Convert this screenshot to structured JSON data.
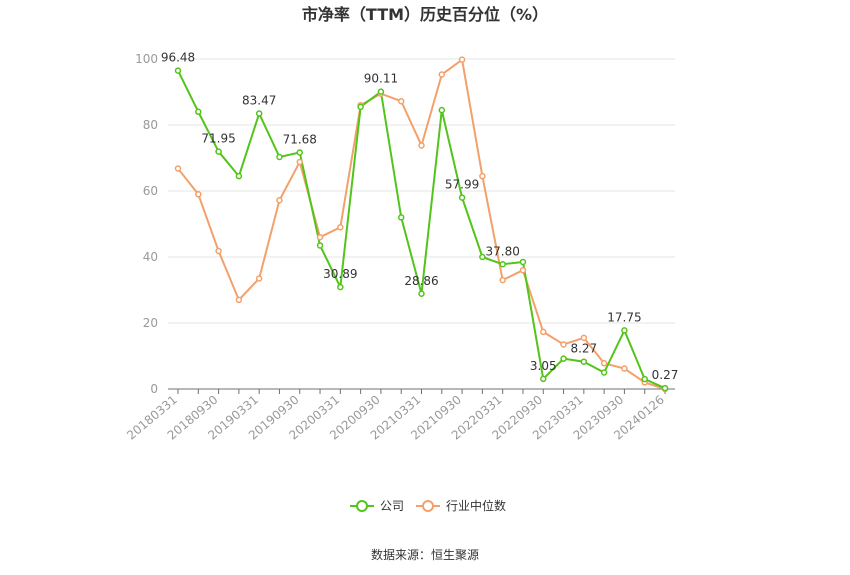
{
  "chart_data": {
    "type": "line",
    "title": "市净率（TTM）历史百分位（%）",
    "source": "数据来源：恒生聚源",
    "ylim": [
      0,
      100
    ],
    "yticks": [
      0,
      20,
      40,
      60,
      80,
      100
    ],
    "grid": true,
    "legend_position": "bottom",
    "x": [
      "20180331",
      "20180630",
      "20180930",
      "20181231",
      "20190331",
      "20190630",
      "20190930",
      "20191231",
      "20200331",
      "20200630",
      "20200930",
      "20201231",
      "20210331",
      "20210630",
      "20210930",
      "20211231",
      "20220331",
      "20220630",
      "20220930",
      "20221231",
      "20230331",
      "20230630",
      "20230930",
      "20231231",
      "20240126"
    ],
    "x_tick_labels": [
      "20180331",
      "20180930",
      "20190331",
      "20190930",
      "20200331",
      "20200930",
      "20210331",
      "20210930",
      "20220331",
      "20220930",
      "20230331",
      "20230930",
      "20240126"
    ],
    "series": [
      {
        "name": "公司",
        "color": "#52c41a",
        "values": [
          96.48,
          84.0,
          71.95,
          64.5,
          83.47,
          70.3,
          71.68,
          43.5,
          30.89,
          85.5,
          90.11,
          52.0,
          28.86,
          84.5,
          57.99,
          40.0,
          37.8,
          38.5,
          3.05,
          9.2,
          8.27,
          5.0,
          17.75,
          3.0,
          0.27
        ],
        "labels": {
          "0": "96.48",
          "2": "71.95",
          "4": "83.47",
          "6": "71.68",
          "8": "30.89",
          "10": "90.11",
          "12": "28.86",
          "14": "57.99",
          "16": "37.80",
          "18": "3.05",
          "20": "8.27",
          "22": "17.75",
          "24": "0.27"
        }
      },
      {
        "name": "行业中位数",
        "color": "#f4a06b",
        "values": [
          66.8,
          59.0,
          41.8,
          27.0,
          33.5,
          57.2,
          68.8,
          46.0,
          49.0,
          86.0,
          89.5,
          87.2,
          73.8,
          95.3,
          99.8,
          64.5,
          33.0,
          36.0,
          17.3,
          13.5,
          15.5,
          7.8,
          6.2,
          2.0,
          0.0
        ]
      }
    ]
  }
}
